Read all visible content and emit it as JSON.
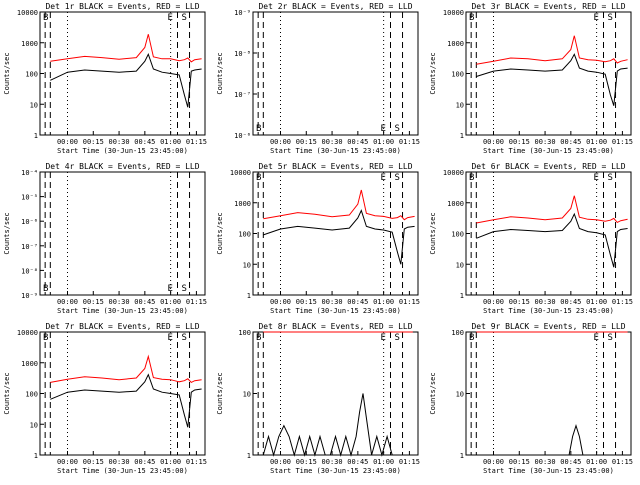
{
  "common": {
    "ylabel": "Counts/sec",
    "xlabel": "Start Time (30-Jun-15 23:45:00)",
    "x_ticks": [
      "00:00",
      "00:15",
      "00:30",
      "00:45",
      "01:00",
      "01:15"
    ],
    "marker_e": "E",
    "marker_s": "S",
    "marker_b": "B",
    "colors": {
      "events": "#000000",
      "lld": "#ff0000"
    }
  },
  "chart_data": [
    {
      "type": "line",
      "title": "Det 1r BLACK = Events, RED = LLD",
      "log_y": true,
      "ylim": [
        1,
        10000
      ],
      "y_ticks": [
        "1",
        "10",
        "100",
        "1000",
        "10000"
      ],
      "x_minutes": [
        -10,
        0,
        10,
        20,
        30,
        40,
        45,
        47,
        50,
        55,
        60,
        65,
        68,
        70,
        72,
        74,
        78
      ],
      "series": [
        {
          "values": [
            250,
            300,
            360,
            330,
            290,
            330,
            700,
            1900,
            350,
            300,
            300,
            260,
            280,
            320,
            240,
            280,
            300
          ]
        },
        {
          "values": [
            60,
            110,
            130,
            120,
            110,
            120,
            250,
            420,
            140,
            110,
            100,
            90,
            20,
            8,
            120,
            130,
            140
          ]
        }
      ]
    },
    {
      "type": "line",
      "title": "Det 2r BLACK = Events, RED = LLD",
      "log_y": true,
      "ylim": [
        1e-06,
        1e-09
      ],
      "y_ticks": [
        "10⁻⁶",
        "10⁻⁷",
        "10⁻⁸",
        "10⁻⁹"
      ],
      "x_minutes": [],
      "series": []
    },
    {
      "type": "line",
      "title": "Det 3r BLACK = Events, RED = LLD",
      "log_y": true,
      "ylim": [
        1,
        10000
      ],
      "y_ticks": [
        "1",
        "10",
        "100",
        "1000",
        "10000"
      ],
      "x_minutes": [
        -10,
        0,
        10,
        20,
        30,
        40,
        45,
        47,
        50,
        55,
        60,
        65,
        68,
        70,
        72,
        74,
        78
      ],
      "series": [
        {
          "values": [
            200,
            250,
            320,
            300,
            260,
            300,
            600,
            1700,
            320,
            280,
            270,
            240,
            260,
            300,
            220,
            250,
            280
          ]
        },
        {
          "values": [
            80,
            120,
            140,
            130,
            120,
            130,
            260,
            420,
            150,
            120,
            110,
            95,
            20,
            9,
            120,
            140,
            150
          ]
        }
      ]
    },
    {
      "type": "line",
      "title": "Det 4r BLACK = Events, RED = LLD",
      "log_y": true,
      "ylim": [
        1e-10,
        0.0001
      ],
      "y_ticks": [
        "10⁻⁹",
        "10⁻⁸",
        "10⁻⁷",
        "10⁻⁶",
        "10⁻⁵",
        "10⁻⁴"
      ],
      "x_minutes": [],
      "series": []
    },
    {
      "type": "line",
      "title": "Det 5r BLACK = Events, RED = LLD",
      "log_y": true,
      "ylim": [
        1,
        10000
      ],
      "y_ticks": [
        "1",
        "10",
        "100",
        "1000",
        "10000"
      ],
      "x_minutes": [
        -10,
        0,
        10,
        20,
        30,
        40,
        45,
        47,
        50,
        55,
        60,
        65,
        68,
        70,
        72,
        74,
        78
      ],
      "series": [
        {
          "values": [
            300,
            380,
            480,
            420,
            350,
            400,
            900,
            2600,
            450,
            380,
            360,
            310,
            330,
            380,
            280,
            330,
            360
          ]
        },
        {
          "values": [
            90,
            140,
            170,
            150,
            130,
            150,
            320,
            560,
            170,
            140,
            130,
            110,
            25,
            10,
            140,
            160,
            170
          ]
        }
      ]
    },
    {
      "type": "line",
      "title": "Det 6r BLACK = Events, RED = LLD",
      "log_y": true,
      "ylim": [
        1,
        10000
      ],
      "y_ticks": [
        "1",
        "10",
        "100",
        "1000",
        "10000"
      ],
      "x_minutes": [
        -10,
        0,
        10,
        20,
        30,
        40,
        45,
        47,
        50,
        55,
        60,
        65,
        68,
        70,
        72,
        74,
        78
      ],
      "series": [
        {
          "values": [
            220,
            280,
            350,
            320,
            280,
            320,
            650,
            1700,
            340,
            290,
            280,
            250,
            270,
            310,
            230,
            260,
            290
          ]
        },
        {
          "values": [
            70,
            115,
            135,
            125,
            115,
            125,
            250,
            430,
            145,
            115,
            105,
            90,
            20,
            8,
            115,
            135,
            145
          ]
        }
      ]
    },
    {
      "type": "line",
      "title": "Det 7r BLACK = Events, RED = LLD",
      "log_y": true,
      "ylim": [
        1,
        10000
      ],
      "y_ticks": [
        "1",
        "10",
        "100",
        "1000",
        "10000"
      ],
      "x_minutes": [
        -10,
        0,
        10,
        20,
        30,
        40,
        45,
        47,
        50,
        55,
        60,
        65,
        68,
        70,
        72,
        74,
        78
      ],
      "series": [
        {
          "values": [
            230,
            290,
            350,
            320,
            280,
            320,
            650,
            1600,
            330,
            290,
            280,
            240,
            260,
            300,
            230,
            260,
            280
          ]
        },
        {
          "values": [
            65,
            110,
            130,
            120,
            110,
            120,
            240,
            410,
            140,
            110,
            100,
            90,
            20,
            8,
            110,
            130,
            140
          ]
        }
      ]
    },
    {
      "type": "line",
      "title": "Det 8r BLACK = Events, RED = LLD",
      "log_y": true,
      "ylim": [
        1,
        100
      ],
      "y_ticks": [
        "1",
        "10",
        "100"
      ],
      "x_minutes": [
        -10,
        -7,
        -4,
        -1,
        2,
        5,
        8,
        11,
        14,
        17,
        20,
        23,
        26,
        29,
        32,
        35,
        38,
        41,
        44,
        46,
        48,
        50,
        53,
        56,
        59,
        62,
        65,
        68,
        71,
        74,
        77
      ],
      "series": [
        {
          "values": [
            100,
            100,
            100,
            100,
            100,
            100,
            100,
            100,
            100,
            100,
            100,
            100,
            100,
            100,
            100,
            100,
            100,
            100,
            100,
            100,
            100,
            100,
            100,
            100,
            100,
            100,
            100,
            100,
            100,
            100,
            100
          ]
        },
        {
          "values": [
            1,
            2,
            1,
            2,
            3,
            2,
            1,
            2,
            1,
            2,
            1,
            2,
            1,
            1,
            2,
            1,
            2,
            1,
            2,
            5,
            10,
            4,
            1,
            2,
            1,
            2,
            1,
            1,
            1,
            1,
            1
          ]
        }
      ]
    },
    {
      "type": "line",
      "title": "Det 9r BLACK = Events, RED = LLD",
      "log_y": true,
      "ylim": [
        1,
        100
      ],
      "y_ticks": [
        "1",
        "10",
        "100"
      ],
      "x_minutes": [
        -10,
        0,
        10,
        20,
        30,
        40,
        44,
        46,
        48,
        50,
        52,
        60,
        70,
        78
      ],
      "series": [
        {
          "values": [
            100,
            100,
            100,
            100,
            100,
            100,
            100,
            100,
            100,
            100,
            100,
            100,
            100,
            100
          ]
        },
        {
          "values": [
            1,
            1,
            1,
            1,
            1,
            1,
            1,
            2,
            3,
            2,
            1,
            1,
            1,
            1
          ]
        }
      ]
    }
  ]
}
